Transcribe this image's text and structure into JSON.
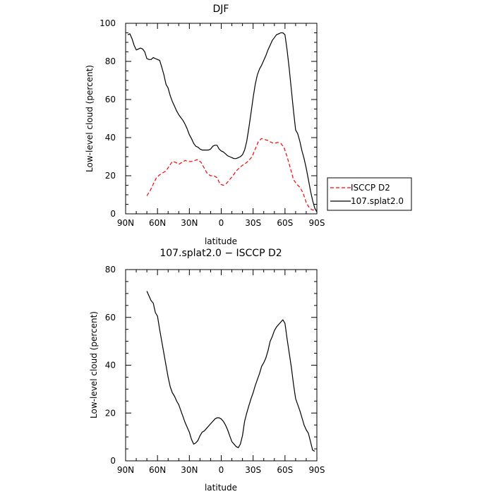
{
  "chart_data": [
    {
      "type": "line",
      "title": "DJF",
      "xlabel": "latitude",
      "ylabel": "Low-level cloud (percent)",
      "xlim": [
        -90,
        90
      ],
      "ylim": [
        0,
        100
      ],
      "x_tick_values": [
        -90,
        -60,
        -30,
        0,
        30,
        60,
        90
      ],
      "x_tick_labels": [
        "90N",
        "60N",
        "30N",
        "0",
        "30S",
        "60S",
        "90S"
      ],
      "y_tick_values": [
        0,
        20,
        40,
        60,
        80,
        100
      ],
      "y_tick_labels": [
        "0",
        "20",
        "40",
        "60",
        "80",
        "100"
      ],
      "legend_position": "right",
      "series": [
        {
          "name": "ISCCP D2",
          "color": "#ff0000",
          "dash": "dashed",
          "x": [
            -70,
            -67,
            -64,
            -61,
            -58,
            -55,
            -52,
            -49,
            -46,
            -43,
            -40,
            -37,
            -34,
            -31,
            -28,
            -25,
            -22,
            -19,
            -16,
            -13,
            -10,
            -7,
            -4,
            -1,
            2,
            5,
            8,
            11,
            14,
            17,
            20,
            23,
            26,
            29,
            32,
            35,
            38,
            41,
            44,
            47,
            50,
            53,
            56,
            59,
            62,
            65,
            68,
            71,
            74,
            77,
            80,
            83,
            86,
            89
          ],
          "values": [
            9.5,
            12,
            15.5,
            19,
            20.5,
            21.5,
            22.5,
            25,
            27.5,
            27,
            26,
            27,
            28,
            27.5,
            27.5,
            28,
            28.5,
            27,
            24,
            21,
            20,
            20,
            19,
            15.5,
            15,
            16,
            18,
            20,
            22.5,
            24,
            25.5,
            26.5,
            28,
            30,
            34,
            38,
            39.5,
            39,
            38.5,
            37.5,
            37,
            37.5,
            37,
            35,
            30,
            24,
            18,
            15.5,
            14,
            11,
            6,
            3,
            2,
            2
          ]
        },
        {
          "name": "107.splat2.0",
          "color": "#000000",
          "dash": "solid",
          "x": [
            -88,
            -86,
            -84,
            -82,
            -80,
            -78,
            -76,
            -74,
            -72,
            -70,
            -68,
            -66,
            -64,
            -62,
            -60,
            -58,
            -56,
            -54,
            -52,
            -50,
            -48,
            -46,
            -44,
            -42,
            -40,
            -38,
            -36,
            -34,
            -32,
            -30,
            -28,
            -26,
            -24,
            -22,
            -20,
            -18,
            -16,
            -14,
            -12,
            -10,
            -8,
            -6,
            -4,
            -2,
            0,
            2,
            4,
            6,
            8,
            10,
            12,
            14,
            16,
            18,
            20,
            22,
            24,
            26,
            28,
            30,
            32,
            34,
            36,
            38,
            40,
            42,
            44,
            46,
            48,
            50,
            52,
            54,
            56,
            58,
            60,
            62,
            64,
            66,
            68,
            70,
            72,
            74,
            76,
            78,
            80,
            82,
            84,
            86,
            88,
            90
          ],
          "values": [
            94,
            94.5,
            92,
            88.5,
            86,
            86.5,
            87,
            86.5,
            85,
            81.5,
            81,
            81,
            82,
            81.5,
            81,
            80.5,
            77,
            73,
            68,
            66,
            62,
            59,
            56.5,
            54,
            52,
            50.5,
            49,
            47,
            44.5,
            41.5,
            39.5,
            37,
            35.5,
            35,
            34,
            33.5,
            33.5,
            33.5,
            33.5,
            34,
            35.5,
            36,
            36,
            34,
            33,
            32.5,
            31.5,
            30.5,
            30,
            29.5,
            29,
            29,
            29.5,
            30,
            31,
            33.5,
            38,
            45,
            53,
            61,
            68,
            73,
            76,
            78,
            80.5,
            83,
            86,
            88.5,
            91,
            92.5,
            94,
            94.5,
            95,
            95,
            94,
            86,
            76,
            65,
            54,
            44,
            42,
            38,
            33,
            29,
            24,
            18,
            12,
            7,
            3,
            1
          ]
        }
      ]
    },
    {
      "type": "line",
      "title": "107.splat2.0 − ISCCP D2",
      "xlabel": "latitude",
      "ylabel": "Low-level cloud (percent)",
      "xlim": [
        -90,
        90
      ],
      "ylim": [
        0,
        80
      ],
      "x_tick_values": [
        -90,
        -60,
        -30,
        0,
        30,
        60,
        90
      ],
      "x_tick_labels": [
        "90N",
        "60N",
        "30N",
        "0",
        "30S",
        "60S",
        "90S"
      ],
      "y_tick_values": [
        0,
        20,
        40,
        60,
        80
      ],
      "y_tick_labels": [
        "0",
        "20",
        "40",
        "60",
        "80"
      ],
      "series": [
        {
          "color": "#000000",
          "dash": "solid",
          "x": [
            -70,
            -68,
            -66,
            -64,
            -62,
            -60,
            -58,
            -56,
            -54,
            -52,
            -50,
            -48,
            -46,
            -44,
            -42,
            -40,
            -38,
            -36,
            -34,
            -32,
            -30,
            -28,
            -26,
            -24,
            -22,
            -20,
            -18,
            -16,
            -14,
            -12,
            -10,
            -8,
            -6,
            -4,
            -2,
            0,
            2,
            4,
            6,
            8,
            10,
            12,
            14,
            16,
            18,
            20,
            22,
            24,
            26,
            28,
            30,
            32,
            34,
            36,
            38,
            40,
            42,
            44,
            46,
            48,
            50,
            52,
            54,
            56,
            58,
            60,
            62,
            64,
            66,
            68,
            70,
            72,
            74,
            76,
            78,
            80,
            82,
            84,
            86,
            88
          ],
          "values": [
            71,
            69,
            67,
            66,
            62,
            60.5,
            55,
            50,
            45,
            40,
            35,
            31,
            28.5,
            27,
            25,
            23.5,
            21,
            18.5,
            16,
            14,
            12,
            9,
            7,
            7.5,
            8.5,
            10.5,
            12,
            12.5,
            13.5,
            14.5,
            15.5,
            16.5,
            17.5,
            18,
            18,
            17.5,
            16.5,
            15,
            13,
            10.5,
            8,
            7,
            6,
            5.5,
            7,
            10.5,
            16.5,
            20,
            23,
            26,
            28.5,
            31.5,
            34,
            36.5,
            39.5,
            41,
            43,
            46,
            50,
            52,
            54.5,
            56,
            57,
            58,
            59,
            57.5,
            51,
            45,
            39,
            32,
            26,
            23.5,
            21,
            18,
            15,
            13,
            11.5,
            8,
            4.5,
            4
          ]
        }
      ]
    }
  ],
  "legend": {
    "items": [
      {
        "label": "ISCCP D2",
        "color": "#ff0000",
        "dash": "dashed"
      },
      {
        "label": "107.splat2.0",
        "color": "#000000",
        "dash": "solid"
      }
    ]
  }
}
